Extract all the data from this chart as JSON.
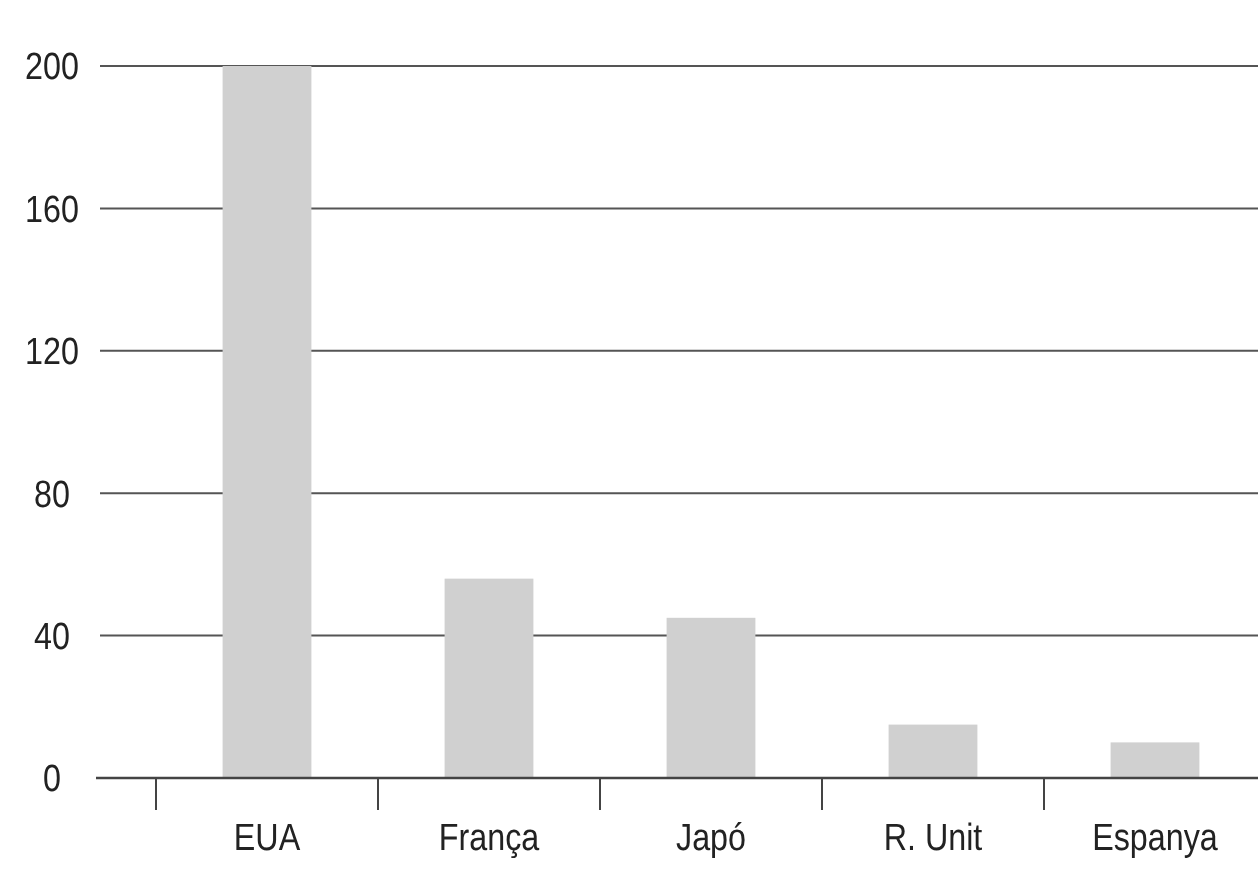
{
  "chart_data": {
    "type": "bar",
    "categories": [
      "EUA",
      "França",
      "Japó",
      "R. Unit",
      "Espanya"
    ],
    "values": [
      200,
      56,
      45,
      15,
      10
    ],
    "color": "#d0d0d0",
    "ylim": [
      0,
      200
    ],
    "yticks": [
      0,
      40,
      80,
      120,
      160,
      200
    ],
    "grid": "y"
  }
}
